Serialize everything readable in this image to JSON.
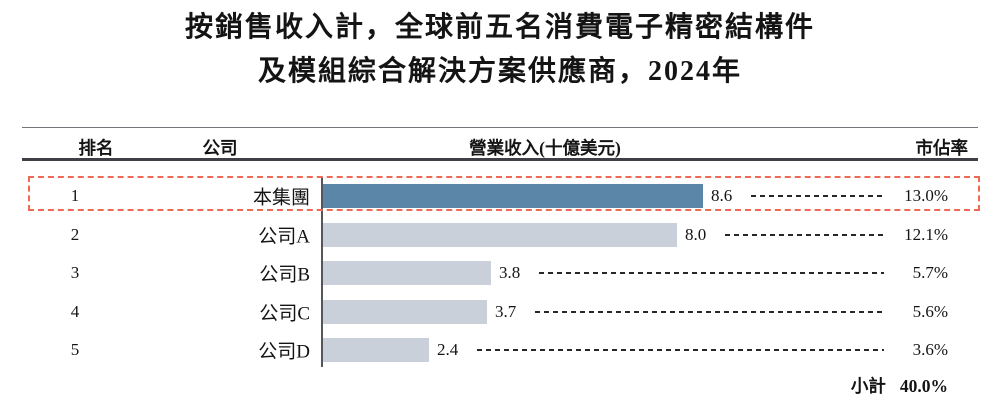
{
  "title": {
    "line1": "按銷售收入計，全球前五名消費電子精密結構件",
    "line2": "及模組綜合解決方案供應商，2024年"
  },
  "table": {
    "headers": {
      "rank": "排名",
      "company": "公司",
      "revenue": "營業收入(十億美元)",
      "share": "市佔率"
    },
    "rows": [
      {
        "rank": "1",
        "company": "本集團",
        "revenue": 8.6,
        "revenue_label": "8.6",
        "share": "13.0%",
        "highlighted": true
      },
      {
        "rank": "2",
        "company": "公司A",
        "revenue": 8.0,
        "revenue_label": "8.0",
        "share": "12.1%",
        "highlighted": false
      },
      {
        "rank": "3",
        "company": "公司B",
        "revenue": 3.8,
        "revenue_label": "3.8",
        "share": "5.7%",
        "highlighted": false
      },
      {
        "rank": "4",
        "company": "公司C",
        "revenue": 3.7,
        "revenue_label": "3.7",
        "share": "5.6%",
        "highlighted": false
      },
      {
        "rank": "5",
        "company": "公司D",
        "revenue": 2.4,
        "revenue_label": "2.4",
        "share": "3.6%",
        "highlighted": false
      }
    ],
    "subtotal": {
      "label": "小計",
      "value": "40.0%"
    }
  },
  "colors": {
    "highlight_bar": "#5b86a8",
    "bar": "#c9d0da",
    "highlight_border": "#ee6a55",
    "rule": "#3f3f46",
    "axis": "#55555c"
  },
  "chart_data": {
    "type": "bar",
    "orientation": "horizontal",
    "title": "按銷售收入計，全球前五名消費電子精密結構件及模組綜合解決方案供應商，2024年",
    "categories": [
      "本集團",
      "公司A",
      "公司B",
      "公司C",
      "公司D"
    ],
    "ranks": [
      1,
      2,
      3,
      4,
      5
    ],
    "values": [
      8.6,
      8.0,
      3.8,
      3.7,
      2.4
    ],
    "value_labels": [
      "8.6",
      "8.0",
      "3.8",
      "3.7",
      "2.4"
    ],
    "market_share": [
      "13.0%",
      "12.1%",
      "5.7%",
      "5.6%",
      "3.6%"
    ],
    "xlabel": "營業收入(十億美元)",
    "share_label": "市佔率",
    "xlim": [
      0,
      9
    ],
    "grid": false,
    "legend": false,
    "highlighted_index": 0,
    "subtotal_label": "小計",
    "subtotal_share": "40.0%"
  }
}
